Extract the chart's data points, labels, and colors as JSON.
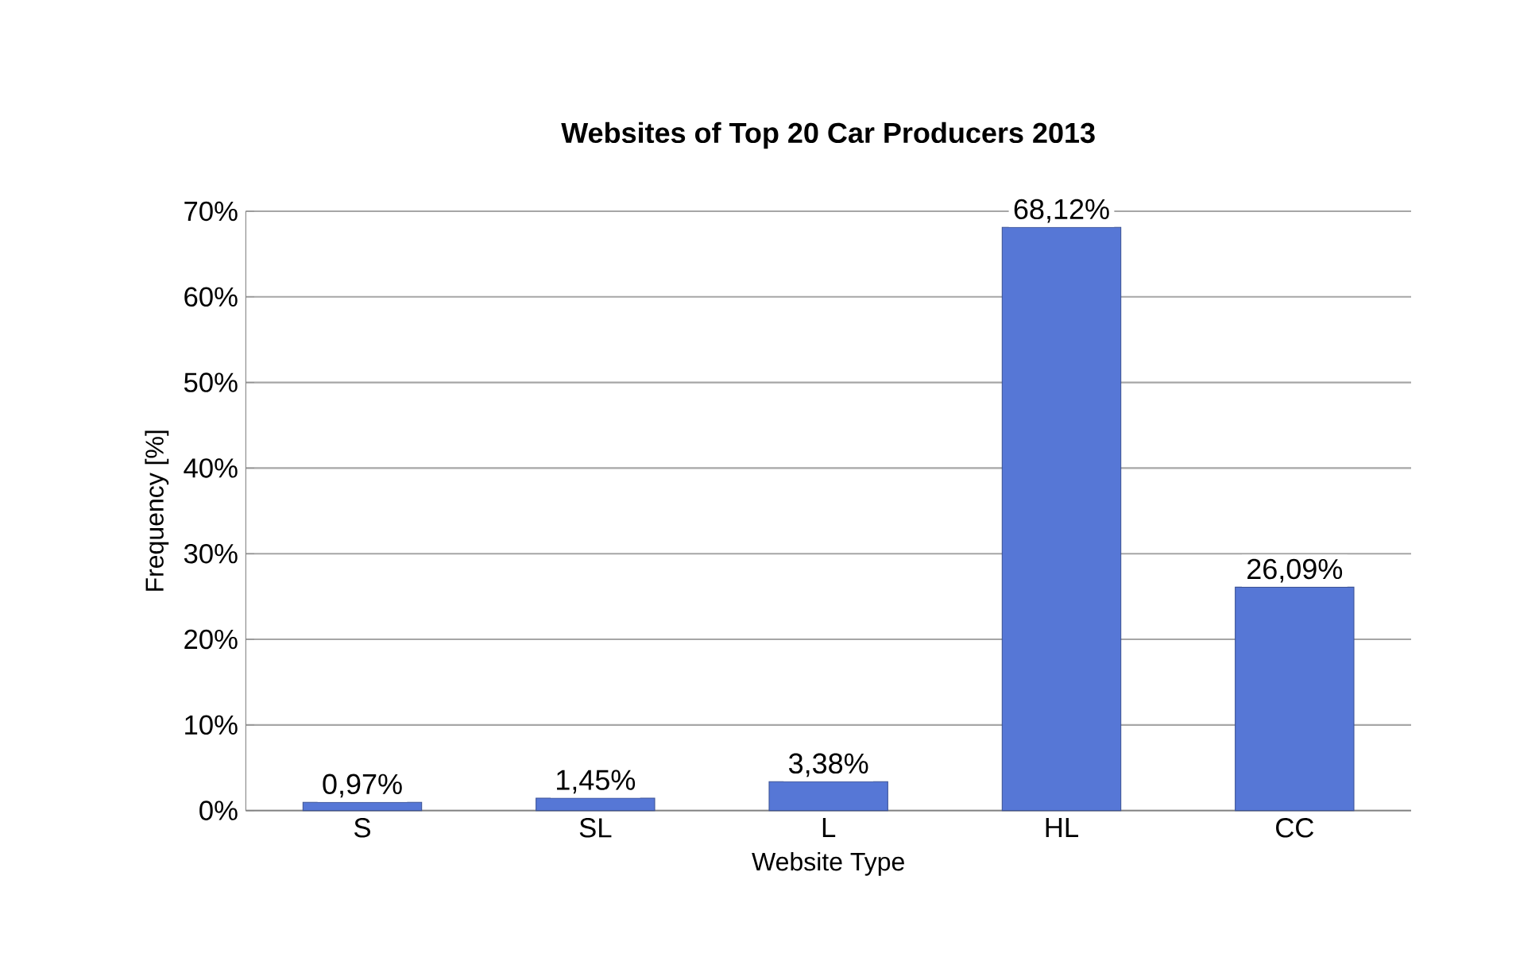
{
  "chart_data": {
    "type": "bar",
    "title": "Websites of Top 20 Car Producers 2013",
    "xlabel": "Website Type",
    "ylabel": "Frequency [%]",
    "categories": [
      "S",
      "SL",
      "L",
      "HL",
      "CC"
    ],
    "values": [
      0.97,
      1.45,
      3.38,
      68.12,
      26.09
    ],
    "value_labels": [
      "0,97%",
      "1,45%",
      "3,38%",
      "68,12%",
      "26,09%"
    ],
    "color": "#5677d6",
    "ylim": [
      0,
      70
    ],
    "yticks": [
      {
        "value": 0,
        "label": "0%"
      },
      {
        "value": 10,
        "label": "10%"
      },
      {
        "value": 20,
        "label": "20%"
      },
      {
        "value": 30,
        "label": "30%"
      },
      {
        "value": 40,
        "label": "40%"
      },
      {
        "value": 50,
        "label": "50%"
      },
      {
        "value": 60,
        "label": "60%"
      },
      {
        "value": 70,
        "label": "70%"
      }
    ],
    "grid": "y"
  }
}
